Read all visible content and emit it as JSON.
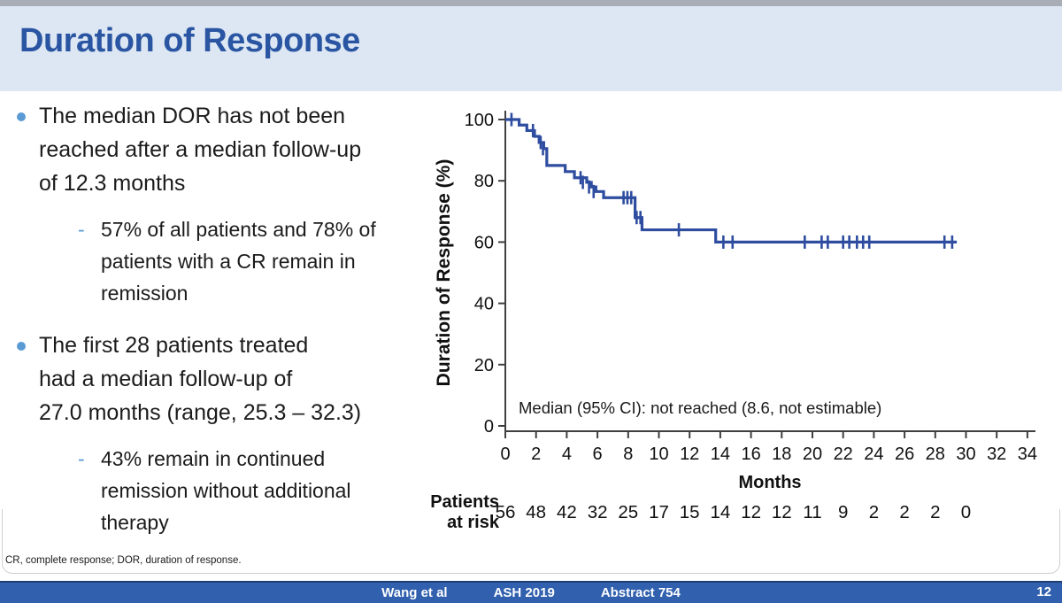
{
  "slide": {
    "title": "Duration of Response",
    "footnote": "CR, complete response; DOR, duration of response.",
    "footer": {
      "authors": "Wang et al",
      "conference": "ASH 2019",
      "abstract": "Abstract 754",
      "page": "12"
    }
  },
  "icons": {
    "sub_dash": "-"
  },
  "bullets": [
    {
      "lines": [
        "The median DOR has not been",
        "reached after a median follow-up",
        "of 12.3 months"
      ],
      "sub_lines": [
        "57% of all patients and 78% of",
        "patients with a CR remain in",
        "remission"
      ]
    },
    {
      "lines": [
        "The first 28 patients treated",
        "had a median follow-up of",
        "27.0 months (range, 25.3 – 32.3)"
      ],
      "sub_lines": [
        "43% remain in continued",
        "remission without additional",
        "therapy"
      ]
    }
  ],
  "chart_data": {
    "type": "line",
    "subtype": "kaplan-meier-step",
    "title": "",
    "xlabel": "Months",
    "ylabel": "Duration of Response (%)",
    "xlim": [
      0,
      34
    ],
    "ylim": [
      0,
      100
    ],
    "grid": false,
    "xticks": [
      0,
      2,
      4,
      6,
      8,
      10,
      12,
      14,
      16,
      18,
      20,
      22,
      24,
      26,
      28,
      30,
      32,
      34
    ],
    "yticks": [
      0,
      20,
      40,
      60,
      80,
      100
    ],
    "annotation": "Median (95% CI): not reached (8.6, not estimable)",
    "line_color": "#2e4da0",
    "steps": [
      [
        0,
        100
      ],
      [
        0.9,
        98.2
      ],
      [
        1.4,
        96.4
      ],
      [
        1.9,
        94.5
      ],
      [
        2.2,
        92.5
      ],
      [
        2.5,
        90.5
      ],
      [
        2.7,
        85
      ],
      [
        3.9,
        83
      ],
      [
        4.5,
        81
      ],
      [
        5.3,
        79.5
      ],
      [
        5.6,
        78
      ],
      [
        5.9,
        76.5
      ],
      [
        6.4,
        74.5
      ],
      [
        8.45,
        68
      ],
      [
        8.9,
        64
      ],
      [
        13.7,
        60
      ]
    ],
    "end_t": 29.4,
    "censors": [
      [
        0.4,
        100
      ],
      [
        1.8,
        96.4
      ],
      [
        2.3,
        92.5
      ],
      [
        2.45,
        90.5
      ],
      [
        4.9,
        81
      ],
      [
        5.05,
        79.5
      ],
      [
        5.45,
        78
      ],
      [
        5.75,
        76.5
      ],
      [
        7.7,
        74.5
      ],
      [
        7.95,
        74.5
      ],
      [
        8.2,
        74.5
      ],
      [
        8.55,
        68
      ],
      [
        8.8,
        68
      ],
      [
        11.3,
        64
      ],
      [
        14.2,
        60
      ],
      [
        14.8,
        60
      ],
      [
        19.5,
        60
      ],
      [
        20.6,
        60
      ],
      [
        21.0,
        60
      ],
      [
        22.0,
        60
      ],
      [
        22.4,
        60
      ],
      [
        22.9,
        60
      ],
      [
        23.3,
        60
      ],
      [
        23.7,
        60
      ],
      [
        28.6,
        60
      ],
      [
        29.1,
        60
      ]
    ],
    "at_risk": {
      "label": [
        "Patients",
        "at risk"
      ],
      "months": [
        0,
        2,
        4,
        6,
        8,
        10,
        12,
        14,
        16,
        18,
        20,
        22,
        24,
        26,
        28,
        30
      ],
      "counts": [
        56,
        48,
        42,
        32,
        25,
        17,
        15,
        14,
        12,
        12,
        11,
        9,
        2,
        2,
        2,
        0
      ]
    }
  }
}
